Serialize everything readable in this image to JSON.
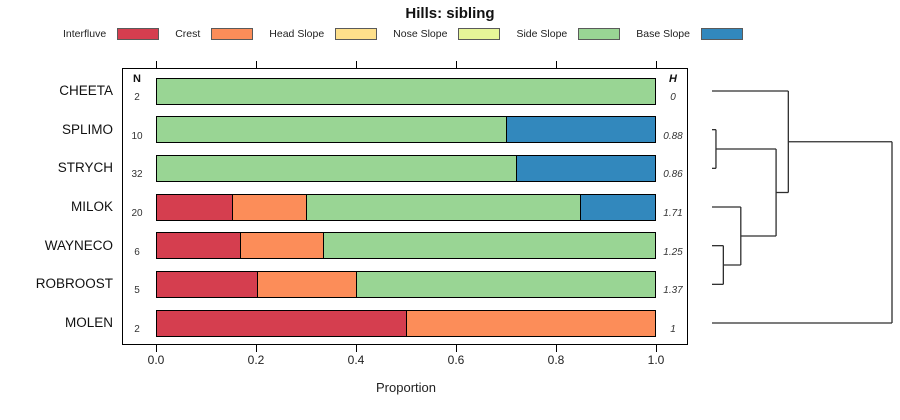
{
  "page": {
    "background": "#ffffff"
  },
  "chart_data": {
    "type": "bar",
    "variant": "horizontal-stacked-proportion-with-dendrogram",
    "title": "Hills: sibling",
    "xlabel": "Proportion",
    "xlim": [
      0,
      1
    ],
    "grid": false,
    "x_ticks": [
      {
        "value": 0.0,
        "label": "0.0"
      },
      {
        "value": 0.2,
        "label": "0.2"
      },
      {
        "value": 0.4,
        "label": "0.4"
      },
      {
        "value": 0.6,
        "label": "0.6"
      },
      {
        "value": 0.8,
        "label": "0.8"
      },
      {
        "value": 1.0,
        "label": "1.0"
      }
    ],
    "columns": {
      "n_header": "N",
      "h_header": "H"
    },
    "categories": [
      {
        "label": "Interfluve",
        "color": "#d53e4f"
      },
      {
        "label": "Crest",
        "color": "#fc8d59"
      },
      {
        "label": "Head Slope",
        "color": "#fee08b"
      },
      {
        "label": "Nose Slope",
        "color": "#e6f598"
      },
      {
        "label": "Side Slope",
        "color": "#99d594"
      },
      {
        "label": "Base Slope",
        "color": "#3288bd"
      }
    ],
    "rows": [
      {
        "label": "CHEETA",
        "n": "2",
        "h": "0",
        "segments": [
          {
            "category": "Side Slope",
            "value": 1.0
          }
        ]
      },
      {
        "label": "SPLIMO",
        "n": "10",
        "h": "0.88",
        "segments": [
          {
            "category": "Side Slope",
            "value": 0.7
          },
          {
            "category": "Base Slope",
            "value": 0.3
          }
        ]
      },
      {
        "label": "STRYCH",
        "n": "32",
        "h": "0.86",
        "segments": [
          {
            "category": "Side Slope",
            "value": 0.72
          },
          {
            "category": "Base Slope",
            "value": 0.28
          }
        ]
      },
      {
        "label": "MILOK",
        "n": "20",
        "h": "1.71",
        "segments": [
          {
            "category": "Interfluve",
            "value": 0.15
          },
          {
            "category": "Crest",
            "value": 0.15
          },
          {
            "category": "Side Slope",
            "value": 0.55
          },
          {
            "category": "Base Slope",
            "value": 0.15
          }
        ]
      },
      {
        "label": "WAYNECO",
        "n": "6",
        "h": "1.25",
        "segments": [
          {
            "category": "Interfluve",
            "value": 0.1667
          },
          {
            "category": "Crest",
            "value": 0.1667
          },
          {
            "category": "Side Slope",
            "value": 0.6666
          }
        ]
      },
      {
        "label": "ROBROOST",
        "n": "5",
        "h": "1.37",
        "segments": [
          {
            "category": "Interfluve",
            "value": 0.2
          },
          {
            "category": "Crest",
            "value": 0.2
          },
          {
            "category": "Side Slope",
            "value": 0.6
          }
        ]
      },
      {
        "label": "MOLEN",
        "n": "2",
        "h": "1",
        "segments": [
          {
            "category": "Interfluve",
            "value": 0.5
          },
          {
            "category": "Crest",
            "value": 0.5
          }
        ]
      }
    ],
    "dendrogram": {
      "side": "right",
      "line_color": "#2e2e2e",
      "leaf_order": [
        "CHEETA",
        "SPLIMO",
        "STRYCH",
        "MILOK",
        "WAYNECO",
        "ROBROOST",
        "MOLEN"
      ],
      "merges": [
        {
          "a": [
            "SPLIMO"
          ],
          "b": [
            "STRYCH"
          ],
          "height": 0.022
        },
        {
          "a": [
            "WAYNECO"
          ],
          "b": [
            "ROBROOST"
          ],
          "height": 0.063
        },
        {
          "a": [
            "MILOK"
          ],
          "b": [
            "WAYNECO",
            "ROBROOST"
          ],
          "height": 0.16
        },
        {
          "a": [
            "SPLIMO",
            "STRYCH"
          ],
          "b": [
            "MILOK",
            "WAYNECO",
            "ROBROOST"
          ],
          "height": 0.356
        },
        {
          "a": [
            "CHEETA"
          ],
          "b": [
            "SPLIMO",
            "STRYCH",
            "MILOK",
            "WAYNECO",
            "ROBROOST"
          ],
          "height": 0.424
        },
        {
          "a": [
            "CHEETA",
            "SPLIMO",
            "STRYCH",
            "MILOK",
            "WAYNECO",
            "ROBROOST"
          ],
          "b": [
            "MOLEN"
          ],
          "height": 1.0
        }
      ]
    },
    "colors": {
      "bar_border": "#000000",
      "frame_border": "#000000"
    }
  }
}
